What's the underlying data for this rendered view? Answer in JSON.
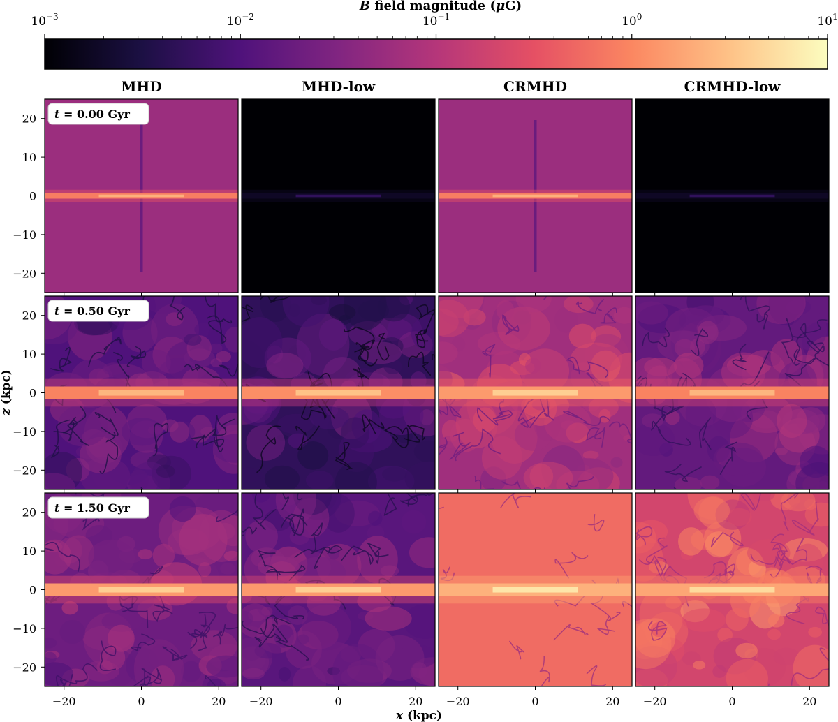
{
  "chart_data": {
    "type": "heatmap",
    "colormap": "magma",
    "colorbar": {
      "label_var": "B",
      "label_text": " field magnitude (",
      "label_mu": "μ",
      "label_unit": "G)",
      "scale": "log",
      "range": [
        0.001,
        10
      ],
      "ticks": [
        {
          "value": 0.001,
          "base": "10",
          "exp": "−3"
        },
        {
          "value": 0.01,
          "base": "10",
          "exp": "−2"
        },
        {
          "value": 0.1,
          "base": "10",
          "exp": "−1"
        },
        {
          "value": 1,
          "base": "10",
          "exp": "0"
        },
        {
          "value": 10,
          "base": "10",
          "exp": "1"
        }
      ]
    },
    "columns": [
      "MHD",
      "MHD-low",
      "CRMHD",
      "CRMHD-low"
    ],
    "rows": [
      {
        "time_var": "t",
        "time_text": "= 0.00 Gyr"
      },
      {
        "time_var": "t",
        "time_text": "= 0.50 Gyr"
      },
      {
        "time_var": "t",
        "time_text": "= 1.50 Gyr"
      }
    ],
    "xaxis": {
      "var": "x",
      "unit": " (kpc)",
      "range": [
        -25,
        25
      ],
      "ticks": [
        -20,
        0,
        20
      ],
      "tick_labels": [
        "−20",
        "0",
        "20"
      ]
    },
    "yaxis": {
      "var": "z",
      "unit": " (kpc)",
      "range": [
        -25,
        25
      ],
      "ticks": [
        -20,
        -10,
        0,
        10,
        20
      ],
      "tick_labels": [
        "−20",
        "−10",
        "0",
        "10",
        "20"
      ]
    },
    "panels": [
      [
        {
          "background_log": -1.25,
          "disk_log": 0.15,
          "level": "uniform"
        },
        {
          "background_log": -3.0,
          "disk_log": -2.5,
          "level": "uniform"
        },
        {
          "background_log": -1.25,
          "disk_log": 0.15,
          "level": "uniform"
        },
        {
          "background_log": -3.0,
          "disk_log": -2.5,
          "level": "uniform"
        }
      ],
      [
        {
          "background_log": -2.0,
          "disk_log": 0.2,
          "level": "turbulent"
        },
        {
          "background_log": -2.3,
          "disk_log": 0.3,
          "level": "turbulent"
        },
        {
          "background_log": -1.2,
          "disk_log": 0.4,
          "level": "turbulent"
        },
        {
          "background_log": -1.8,
          "disk_log": 0.2,
          "level": "turbulent"
        }
      ],
      [
        {
          "background_log": -1.7,
          "disk_log": 0.4,
          "level": "turbulent"
        },
        {
          "background_log": -1.9,
          "disk_log": 0.4,
          "level": "turbulent"
        },
        {
          "background_log": -0.25,
          "disk_log": 0.6,
          "level": "smooth"
        },
        {
          "background_log": -0.7,
          "disk_log": 0.5,
          "level": "turbulent"
        }
      ]
    ]
  }
}
